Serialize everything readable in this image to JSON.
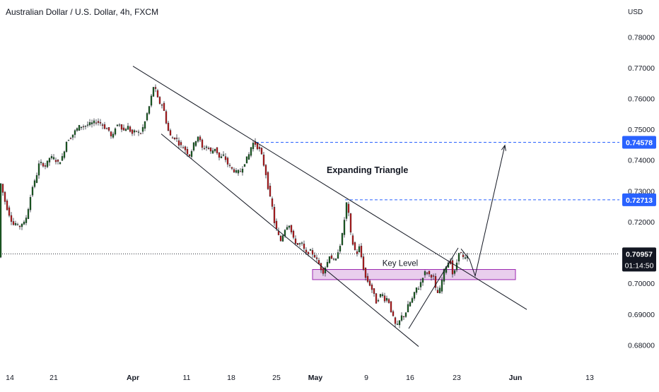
{
  "chart_data": {
    "type": "candlestick",
    "title": "Australian Dollar / U.S. Dollar, 4h, FXCM",
    "currency_label": "USD",
    "y_ticks": [
      0.78,
      0.77,
      0.76,
      0.75,
      0.74,
      0.73,
      0.72,
      0.7,
      0.69,
      0.68
    ],
    "y_tick_labels": [
      "0.78000",
      "0.77000",
      "0.76000",
      "0.75000",
      "0.74000",
      "0.73000",
      "0.72000",
      "0.70000",
      "0.69000",
      "0.68000"
    ],
    "ylim": [
      0.6755,
      0.7835
    ],
    "x_ticks": [
      {
        "label": "14",
        "bold": false
      },
      {
        "label": "21",
        "bold": false
      },
      {
        "label": "Apr",
        "bold": true
      },
      {
        "label": "11",
        "bold": false
      },
      {
        "label": "18",
        "bold": false
      },
      {
        "label": "25",
        "bold": false
      },
      {
        "label": "May",
        "bold": true
      },
      {
        "label": "9",
        "bold": false
      },
      {
        "label": "16",
        "bold": false
      },
      {
        "label": "23",
        "bold": false
      },
      {
        "label": "Jun",
        "bold": true
      },
      {
        "label": "13",
        "bold": false
      }
    ],
    "price_path": [
      [
        0,
        0.7345
      ],
      [
        4,
        0.731
      ],
      [
        8,
        0.727
      ],
      [
        12,
        0.724
      ],
      [
        16,
        0.7215
      ],
      [
        20,
        0.719
      ],
      [
        24,
        0.7195
      ],
      [
        28,
        0.718
      ],
      [
        32,
        0.7195
      ],
      [
        36,
        0.7195
      ],
      [
        40,
        0.7225
      ],
      [
        44,
        0.7275
      ],
      [
        48,
        0.732
      ],
      [
        52,
        0.7335
      ],
      [
        56,
        0.7385
      ],
      [
        60,
        0.739
      ],
      [
        66,
        0.738
      ],
      [
        72,
        0.741
      ],
      [
        78,
        0.7405
      ],
      [
        84,
        0.739
      ],
      [
        90,
        0.741
      ],
      [
        96,
        0.7465
      ],
      [
        102,
        0.7475
      ],
      [
        108,
        0.7495
      ],
      [
        114,
        0.751
      ],
      [
        120,
        0.751
      ],
      [
        126,
        0.7515
      ],
      [
        132,
        0.752
      ],
      [
        138,
        0.7525
      ],
      [
        144,
        0.752
      ],
      [
        150,
        0.7505
      ],
      [
        156,
        0.7495
      ],
      [
        160,
        0.7465
      ],
      [
        164,
        0.7505
      ],
      [
        170,
        0.752
      ],
      [
        176,
        0.7495
      ],
      [
        182,
        0.751
      ],
      [
        188,
        0.7485
      ],
      [
        194,
        0.7495
      ],
      [
        200,
        0.7485
      ],
      [
        206,
        0.752
      ],
      [
        210,
        0.7555
      ],
      [
        214,
        0.7585
      ],
      [
        218,
        0.764
      ],
      [
        222,
        0.7625
      ],
      [
        226,
        0.7585
      ],
      [
        230,
        0.7585
      ],
      [
        234,
        0.7555
      ],
      [
        238,
        0.7505
      ],
      [
        242,
        0.748
      ],
      [
        246,
        0.747
      ],
      [
        250,
        0.7475
      ],
      [
        254,
        0.7455
      ],
      [
        258,
        0.7445
      ],
      [
        262,
        0.744
      ],
      [
        266,
        0.7425
      ],
      [
        270,
        0.7415
      ],
      [
        276,
        0.7455
      ],
      [
        282,
        0.748
      ],
      [
        288,
        0.7435
      ],
      [
        294,
        0.7445
      ],
      [
        300,
        0.7425
      ],
      [
        306,
        0.744
      ],
      [
        312,
        0.7405
      ],
      [
        318,
        0.7415
      ],
      [
        324,
        0.7385
      ],
      [
        330,
        0.737
      ],
      [
        336,
        0.736
      ],
      [
        342,
        0.7365
      ],
      [
        348,
        0.7395
      ],
      [
        354,
        0.742
      ],
      [
        358,
        0.7455
      ],
      [
        362,
        0.7455
      ],
      [
        366,
        0.744
      ],
      [
        370,
        0.743
      ],
      [
        374,
        0.739
      ],
      [
        378,
        0.735
      ],
      [
        382,
        0.729
      ],
      [
        386,
        0.7255
      ],
      [
        390,
        0.719
      ],
      [
        394,
        0.7165
      ],
      [
        398,
        0.7135
      ],
      [
        404,
        0.7175
      ],
      [
        410,
        0.7195
      ],
      [
        416,
        0.7145
      ],
      [
        422,
        0.7125
      ],
      [
        428,
        0.713
      ],
      [
        434,
        0.7095
      ],
      [
        440,
        0.7105
      ],
      [
        446,
        0.709
      ],
      [
        452,
        0.7065
      ],
      [
        458,
        0.7035
      ],
      [
        464,
        0.7065
      ],
      [
        468,
        0.7095
      ],
      [
        472,
        0.7075
      ],
      [
        476,
        0.707
      ],
      [
        480,
        0.711
      ],
      [
        484,
        0.7135
      ],
      [
        488,
        0.7195
      ],
      [
        491,
        0.7265
      ],
      [
        494,
        0.7235
      ],
      [
        498,
        0.715
      ],
      [
        502,
        0.7115
      ],
      [
        506,
        0.7095
      ],
      [
        510,
        0.712
      ],
      [
        514,
        0.7065
      ],
      [
        518,
        0.702
      ],
      [
        522,
        0.7005
      ],
      [
        526,
        0.699
      ],
      [
        530,
        0.6965
      ],
      [
        534,
        0.6935
      ],
      [
        538,
        0.696
      ],
      [
        542,
        0.6965
      ],
      [
        546,
        0.6945
      ],
      [
        550,
        0.6955
      ],
      [
        554,
        0.6915
      ],
      [
        558,
        0.6885
      ],
      [
        562,
        0.6855
      ],
      [
        566,
        0.6875
      ],
      [
        570,
        0.6895
      ],
      [
        574,
        0.6895
      ],
      [
        578,
        0.6925
      ],
      [
        582,
        0.694
      ],
      [
        586,
        0.6955
      ],
      [
        590,
        0.6985
      ],
      [
        594,
        0.6985
      ],
      [
        598,
        0.7015
      ],
      [
        602,
        0.7035
      ],
      [
        606,
        0.7035
      ],
      [
        610,
        0.7025
      ],
      [
        614,
        0.7025
      ],
      [
        618,
        0.6975
      ],
      [
        622,
        0.6965
      ],
      [
        626,
        0.7005
      ],
      [
        630,
        0.7045
      ],
      [
        634,
        0.7065
      ],
      [
        638,
        0.7075
      ],
      [
        642,
        0.7025
      ],
      [
        646,
        0.7045
      ],
      [
        650,
        0.7105
      ],
      [
        654,
        0.7095
      ],
      [
        658,
        0.7075
      ],
      [
        662,
        0.7085
      ]
    ],
    "trendlines": [
      {
        "name": "upper-trendline",
        "points": [
          [
            188,
            0.7705
          ],
          [
            745,
            0.6915
          ]
        ]
      },
      {
        "name": "lower-trendline",
        "points": [
          [
            228,
            0.7485
          ],
          [
            592,
            0.6795
          ]
        ]
      },
      {
        "name": "rising-wedge-line",
        "points": [
          [
            578,
            0.6853
          ],
          [
            648,
            0.7115
          ]
        ]
      }
    ],
    "horizontal_levels": [
      {
        "name": "level-0-74578",
        "value": 0.74578,
        "label": "0.74578",
        "x_start": 362
      },
      {
        "name": "level-0-72713",
        "value": 0.72713,
        "label": "0.72713",
        "x_start": 488
      }
    ],
    "current_price": {
      "value": 0.70957,
      "label": "0.70957",
      "countdown": "01:14:50"
    },
    "key_level": {
      "label": "Key Level",
      "low": 0.7012,
      "high": 0.7045,
      "x_start": 442,
      "x_end": 729
    },
    "projection_arrow": {
      "points": [
        [
          672,
          0.7024
        ],
        [
          714,
          0.7448
        ]
      ]
    },
    "annotation": {
      "text": "Expanding Triangle",
      "x": 462,
      "y": 0.7358
    }
  }
}
